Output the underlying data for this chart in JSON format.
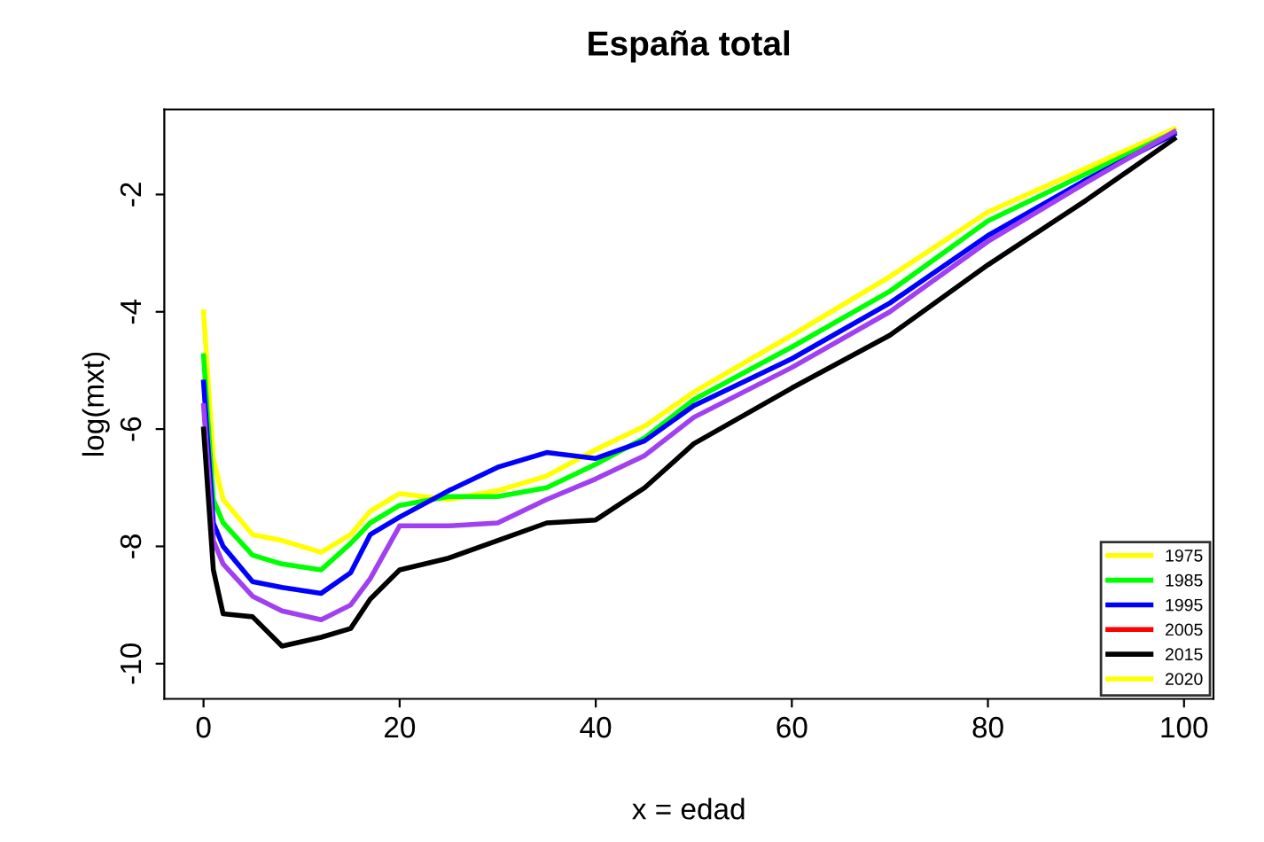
{
  "chart_data": {
    "type": "line",
    "title": "España total",
    "xlabel": "x = edad",
    "ylabel": "log(mxt)",
    "x": [
      0,
      1,
      2,
      5,
      8,
      12,
      15,
      17,
      20,
      25,
      30,
      35,
      40,
      45,
      50,
      60,
      70,
      80,
      90,
      99
    ],
    "series": [
      {
        "name": "1975",
        "color": "#ffff00",
        "values": [
          -4.0,
          -6.5,
          -7.2,
          -7.8,
          -7.9,
          -8.1,
          -7.8,
          -7.4,
          -7.1,
          -7.2,
          -7.05,
          -6.8,
          -6.35,
          -5.95,
          -5.37,
          -4.4,
          -3.4,
          -2.3,
          -1.55,
          -0.88
        ]
      },
      {
        "name": "1985",
        "color": "#00ff00",
        "values": [
          -4.75,
          -7.2,
          -7.6,
          -8.15,
          -8.3,
          -8.4,
          -7.95,
          -7.6,
          -7.3,
          -7.15,
          -7.15,
          -7.0,
          -6.6,
          -6.15,
          -5.5,
          -4.6,
          -3.65,
          -2.45,
          -1.65,
          -0.94
        ]
      },
      {
        "name": "1995",
        "color": "#0000ff",
        "values": [
          -5.2,
          -7.6,
          -8.0,
          -8.6,
          -8.7,
          -8.8,
          -8.45,
          -7.8,
          -7.5,
          -7.05,
          -6.65,
          -6.4,
          -6.5,
          -6.2,
          -5.6,
          -4.8,
          -3.85,
          -2.7,
          -1.75,
          -0.97
        ]
      },
      {
        "name": "2005",
        "color": "#ff0000",
        "values": [
          null,
          null,
          null,
          null,
          null,
          null,
          null,
          null,
          null,
          null,
          null,
          null,
          null,
          null,
          null,
          null,
          null,
          null,
          null,
          null
        ]
      },
      {
        "color": "#a040f0",
        "values": [
          -5.6,
          -7.9,
          -8.3,
          -8.85,
          -9.1,
          -9.25,
          -9.0,
          -8.55,
          -7.65,
          -7.65,
          -7.6,
          -7.2,
          -6.85,
          -6.45,
          -5.8,
          -4.95,
          -4.0,
          -2.8,
          -1.8,
          -0.93
        ]
      },
      {
        "name": "2015",
        "color": "#000000",
        "values": [
          -6.0,
          -8.4,
          -9.15,
          -9.2,
          -9.7,
          -9.55,
          -9.4,
          -8.9,
          -8.4,
          -8.2,
          -7.9,
          -7.6,
          -7.55,
          -7.0,
          -6.25,
          -5.3,
          -4.4,
          -3.2,
          -2.1,
          -1.05
        ]
      },
      {
        "name": "2020",
        "color": "#ffff00",
        "values": [
          null,
          null,
          null,
          null,
          null,
          null,
          null,
          null,
          null,
          null,
          null,
          null,
          null,
          null,
          null,
          null,
          null,
          null,
          null,
          null
        ]
      }
    ],
    "xlim": [
      -4,
      103
    ],
    "ylim": [
      -10.6,
      -0.55
    ],
    "xticks": [
      0,
      20,
      40,
      60,
      80,
      100
    ],
    "yticks": [
      -10,
      -8,
      -6,
      -4,
      -2
    ],
    "grid": false,
    "legend": "bottom right",
    "line_style": "solid"
  }
}
